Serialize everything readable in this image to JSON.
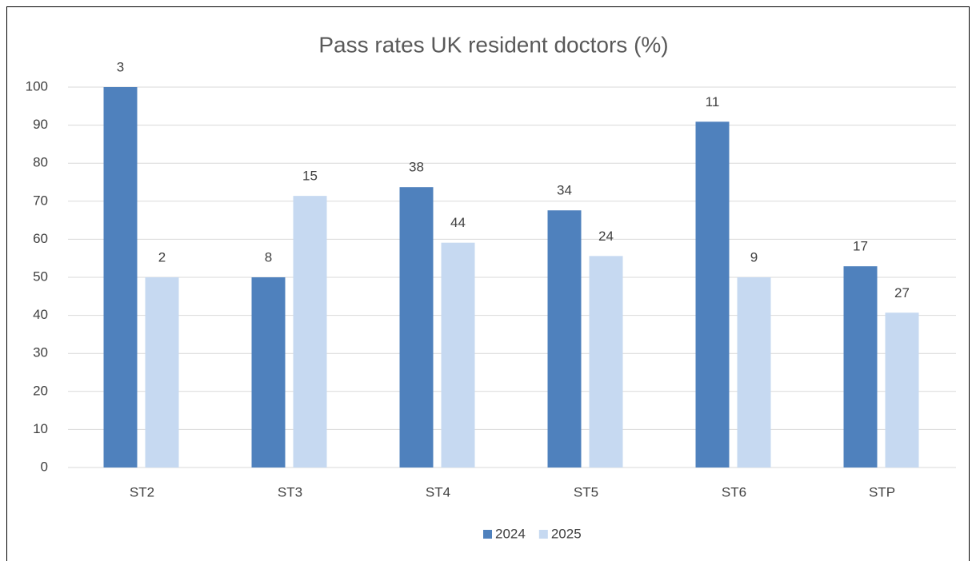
{
  "chart_data": {
    "type": "bar",
    "title": "Pass rates UK resident doctors (%)",
    "categories": [
      "ST2",
      "ST3",
      "ST4",
      "ST5",
      "ST6",
      "STP"
    ],
    "series": [
      {
        "name": "2024",
        "color": "#4f81bd",
        "values": [
          100,
          50,
          73.7,
          67.6,
          90.9,
          52.9
        ],
        "counts": [
          "3",
          "8",
          "38",
          "34",
          "11",
          "17"
        ]
      },
      {
        "name": "2025",
        "color": "#c6d9f1",
        "values": [
          50,
          71.4,
          59.1,
          55.6,
          50,
          40.7
        ],
        "counts": [
          "2",
          "15",
          "44",
          "24",
          "9",
          "27"
        ]
      }
    ],
    "ylim": [
      0,
      100
    ],
    "yticks": [
      0,
      10,
      20,
      30,
      40,
      50,
      60,
      70,
      80,
      90,
      100
    ],
    "grid": true,
    "legend": "bottom"
  }
}
